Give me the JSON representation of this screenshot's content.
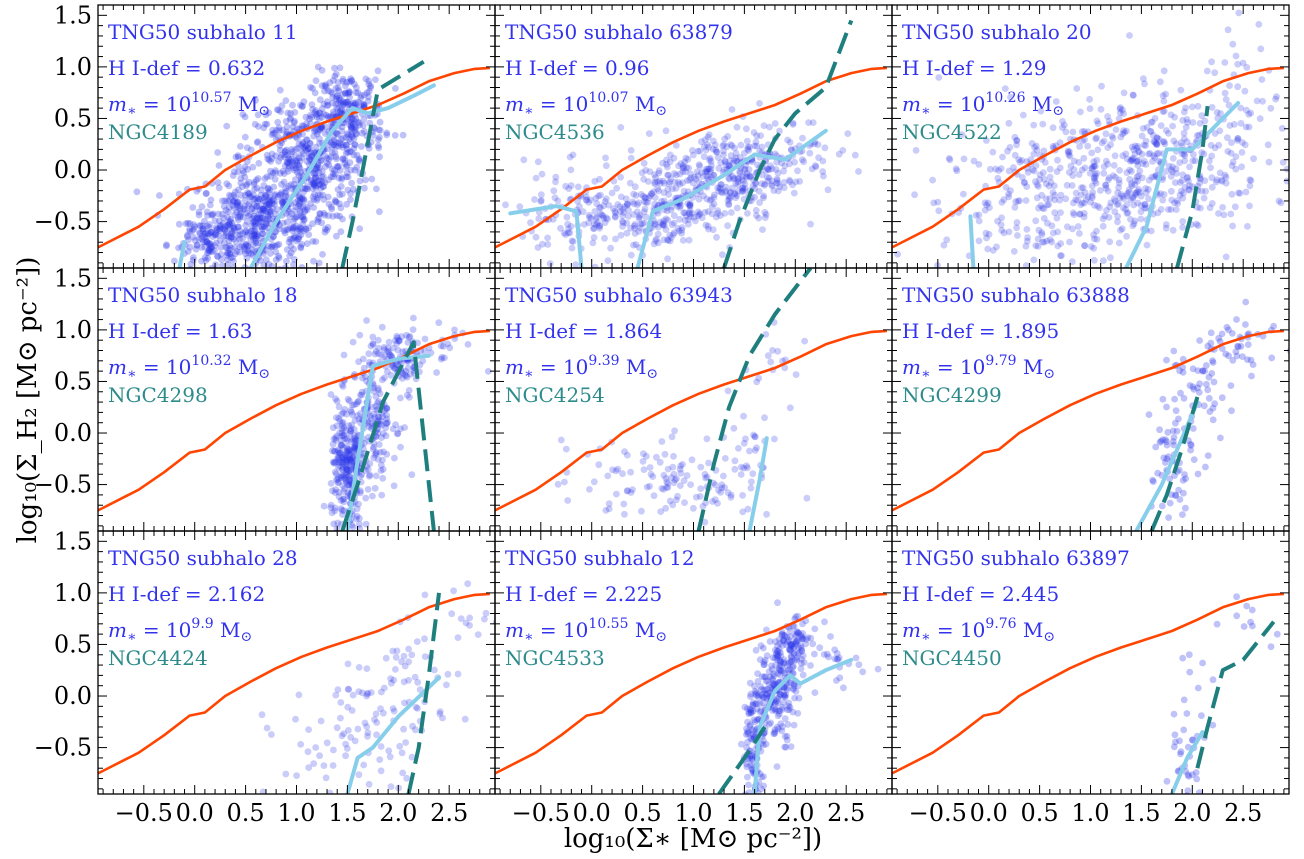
{
  "figure": {
    "xlabel": "log₁₀(Σ∗ [M⊙ pc⁻²])",
    "ylabel": "log₁₀(Σ_H₂ [M⊙ pc⁻²])",
    "colors": {
      "points": "#2b35e8",
      "reference_line": "#ff4500",
      "observed_line": "#1f7f7f",
      "simulated_line": "#87ceeb",
      "annotation_tng": "#3333ee",
      "annotation_ngc": "#2e8b8b"
    }
  },
  "chart_data": {
    "type": "scatter",
    "layout": "3x3 grid, shared axes",
    "xlabel": "log₁₀(Σ∗ [M⊙ pc⁻²])",
    "ylabel": "log₁₀(Σ_H₂ [M⊙ pc⁻²])",
    "xlim": [
      -0.95,
      2.95
    ],
    "ylim": [
      -0.95,
      1.6
    ],
    "xticks": [
      -0.5,
      0.0,
      0.5,
      1.0,
      1.5,
      2.0,
      2.5
    ],
    "xtick_labels": [
      "−0.5",
      "0.0",
      "0.5",
      "1.0",
      "1.5",
      "2.0",
      "2.5"
    ],
    "yticks": [
      -0.5,
      0.0,
      0.5,
      1.0,
      1.5
    ],
    "ytick_labels": [
      "−0.5",
      "0.0",
      "0.5",
      "1.0",
      "1.5"
    ],
    "reference_curve": {
      "x": [
        -0.95,
        -0.55,
        -0.3,
        -0.05,
        0.1,
        0.3,
        0.55,
        0.8,
        1.05,
        1.3,
        1.55,
        1.8,
        2.05,
        2.3,
        2.55,
        2.75,
        2.9
      ],
      "y": [
        -0.75,
        -0.55,
        -0.38,
        -0.19,
        -0.16,
        0.0,
        0.14,
        0.27,
        0.38,
        0.47,
        0.55,
        0.63,
        0.74,
        0.86,
        0.94,
        0.98,
        0.99
      ]
    },
    "panels": [
      {
        "title": "TNG50 subhalo 11",
        "hidef": "H I-def = 0.632",
        "mstar_exp": "10.57",
        "ngc": "NGC4189",
        "scatter": {
          "cx": [
            0.65,
            1.1,
            1.5,
            0.2
          ],
          "cy": [
            -0.5,
            0.1,
            0.55,
            -0.7
          ],
          "sx": [
            0.35,
            0.3,
            0.18,
            0.2
          ],
          "sy": [
            0.25,
            0.3,
            0.2,
            0.15
          ],
          "n": [
            480,
            420,
            220,
            120
          ],
          "alpha": 0.3
        },
        "observed_line": {
          "x": [
            1.45,
            1.55,
            1.65,
            1.8,
            2.25
          ],
          "y": [
            -0.95,
            -0.5,
            0.0,
            0.78,
            1.05
          ]
        },
        "simulated_line": {
          "x": [
            -0.15,
            -0.1
          ],
          "y": [
            -0.95,
            -0.7
          ],
          "x2": [
            0.55,
            0.8,
            1.1,
            1.35,
            1.55,
            1.7,
            1.9,
            2.15,
            2.35
          ],
          "y2": [
            -0.95,
            -0.5,
            -0.05,
            0.38,
            0.6,
            0.55,
            0.6,
            0.72,
            0.82
          ]
        }
      },
      {
        "title": "TNG50 subhalo 63879",
        "hidef": "H I-def = 0.96",
        "mstar_exp": "10.07",
        "ngc": "NGC4536",
        "scatter": {
          "cx": [
            0.0,
            0.7,
            1.3,
            1.8
          ],
          "cy": [
            -0.45,
            -0.35,
            -0.05,
            0.15
          ],
          "sx": [
            0.45,
            0.35,
            0.3,
            0.3
          ],
          "sy": [
            0.22,
            0.22,
            0.22,
            0.2
          ],
          "n": [
            160,
            220,
            220,
            120
          ],
          "alpha": 0.25
        },
        "observed_line": {
          "x": [
            1.3,
            1.45,
            1.65,
            1.8,
            2.0,
            2.3,
            2.55
          ],
          "y": [
            -0.95,
            -0.5,
            0.0,
            0.3,
            0.55,
            0.8,
            1.45
          ]
        },
        "simulated_line": {
          "x": [
            -0.8,
            -0.35,
            -0.15,
            -0.1
          ],
          "y": [
            -0.42,
            -0.35,
            -0.4,
            -0.95
          ],
          "x2": [
            0.45,
            0.6,
            0.9,
            1.3,
            1.6,
            1.9,
            2.3
          ],
          "y2": [
            -0.95,
            -0.4,
            -0.28,
            -0.05,
            0.15,
            0.1,
            0.38
          ]
        }
      },
      {
        "title": "TNG50 subhalo 20",
        "hidef": "H I-def = 1.29",
        "mstar_exp": "10.26",
        "ngc": "NGC4522",
        "scatter": {
          "cx": [
            0.5,
            1.2,
            1.9,
            2.5
          ],
          "cy": [
            -0.35,
            0.05,
            0.1,
            0.8
          ],
          "sx": [
            0.5,
            0.5,
            0.4,
            0.2
          ],
          "sy": [
            0.35,
            0.35,
            0.35,
            0.35
          ],
          "n": [
            220,
            260,
            200,
            40
          ],
          "alpha": 0.25
        },
        "observed_line": {
          "x": [
            1.85,
            2.0,
            2.1,
            2.15
          ],
          "y": [
            -0.95,
            -0.4,
            0.2,
            0.62
          ]
        },
        "simulated_line": {
          "x": [
            -0.18,
            -0.15
          ],
          "y": [
            -0.45,
            -0.95
          ],
          "x2": [
            1.35,
            1.55,
            1.75,
            2.0,
            2.25,
            2.45
          ],
          "y2": [
            -0.95,
            -0.55,
            0.2,
            0.2,
            0.45,
            0.65
          ]
        }
      },
      {
        "title": "TNG50 subhalo 18",
        "hidef": "H I-def = 1.63",
        "mstar_exp": "10.32",
        "ngc": "NGC4298",
        "scatter": {
          "cx": [
            1.5,
            1.75,
            2.05,
            2.5
          ],
          "cy": [
            -0.4,
            0.2,
            0.7,
            0.9
          ],
          "sx": [
            0.08,
            0.12,
            0.12,
            0.15
          ],
          "sy": [
            0.35,
            0.35,
            0.15,
            0.1
          ],
          "n": [
            260,
            200,
            90,
            15
          ],
          "alpha": 0.28
        },
        "observed_line": {
          "x": [
            1.45,
            1.6,
            1.85,
            2.15,
            2.35
          ],
          "y": [
            -0.95,
            -0.5,
            0.3,
            0.88,
            -0.95
          ]
        },
        "simulated_line": {
          "x": [
            1.5,
            1.58,
            1.75,
            2.0,
            2.3
          ],
          "y": [
            -0.95,
            -0.4,
            0.65,
            0.72,
            0.75
          ]
        }
      },
      {
        "title": "TNG50 subhalo 63943",
        "hidef": "H I-def = 1.864",
        "mstar_exp": "9.39",
        "ngc": "NGC4254",
        "scatter": {
          "cx": [
            0.4,
            1.0,
            1.5,
            1.8
          ],
          "cy": [
            -0.45,
            -0.5,
            -0.3,
            0.7
          ],
          "sx": [
            0.4,
            0.3,
            0.15,
            0.15
          ],
          "sy": [
            0.2,
            0.2,
            0.35,
            0.25
          ],
          "n": [
            50,
            60,
            40,
            15
          ],
          "alpha": 0.25
        },
        "observed_line": {
          "x": [
            1.05,
            1.2,
            1.35,
            1.55,
            1.8,
            2.15
          ],
          "y": [
            -0.95,
            -0.3,
            0.25,
            0.75,
            1.15,
            1.6
          ]
        },
        "simulated_line": {
          "x": [
            1.55,
            1.65,
            1.72
          ],
          "y": [
            -0.95,
            -0.45,
            -0.05
          ]
        }
      },
      {
        "title": "TNG50 subhalo 63888",
        "hidef": "H I-def = 1.895",
        "mstar_exp": "9.79",
        "ngc": "NGC4299",
        "scatter": {
          "cx": [
            1.8,
            2.0,
            2.3,
            2.6
          ],
          "cy": [
            -0.3,
            0.3,
            0.7,
            0.9
          ],
          "sx": [
            0.1,
            0.12,
            0.15,
            0.15
          ],
          "sy": [
            0.4,
            0.3,
            0.2,
            0.15
          ],
          "n": [
            60,
            40,
            30,
            20
          ],
          "alpha": 0.3
        },
        "observed_line": {
          "x": [
            1.6,
            1.75,
            1.9,
            2.05
          ],
          "y": [
            -0.95,
            -0.6,
            -0.15,
            0.35
          ]
        },
        "simulated_line": {
          "x": [
            1.45,
            1.7,
            1.9,
            2.05
          ],
          "y": [
            -0.95,
            -0.5,
            -0.05,
            0.3
          ]
        }
      },
      {
        "title": "TNG50 subhalo 28",
        "hidef": "H I-def = 2.162",
        "mstar_exp": "9.9",
        "ngc": "NGC4424",
        "scatter": {
          "cx": [
            1.3,
            1.8,
            2.2,
            2.7
          ],
          "cy": [
            -0.6,
            -0.2,
            0.2,
            0.8
          ],
          "sx": [
            0.3,
            0.25,
            0.2,
            0.2
          ],
          "sy": [
            0.3,
            0.3,
            0.3,
            0.15
          ],
          "n": [
            40,
            50,
            40,
            15
          ],
          "alpha": 0.25
        },
        "observed_line": {
          "x": [
            2.1,
            2.2,
            2.3,
            2.4
          ],
          "y": [
            -0.95,
            -0.5,
            0.2,
            1.0
          ]
        },
        "simulated_line": {
          "x": [
            1.5,
            1.6,
            1.75,
            2.0,
            2.4
          ],
          "y": [
            -0.95,
            -0.6,
            -0.5,
            -0.2,
            0.18
          ]
        }
      },
      {
        "title": "TNG50 subhalo 12",
        "hidef": "H I-def = 2.225",
        "mstar_exp": "10.55",
        "ngc": "NGC4533",
        "scatter": {
          "cx": [
            1.6,
            1.8,
            1.95,
            2.4
          ],
          "cy": [
            -0.5,
            0.05,
            0.45,
            0.3
          ],
          "sx": [
            0.06,
            0.1,
            0.1,
            0.2
          ],
          "sy": [
            0.3,
            0.25,
            0.15,
            0.15
          ],
          "n": [
            120,
            180,
            110,
            25
          ],
          "alpha": 0.28
        },
        "observed_line": {
          "x": [
            1.25,
            1.5,
            1.7
          ],
          "y": [
            -0.95,
            -0.6,
            -0.3
          ]
        },
        "simulated_line": {
          "x": [
            1.6,
            1.65,
            1.8,
            1.95,
            2.05,
            2.3,
            2.55
          ],
          "y": [
            -0.95,
            -0.3,
            0.05,
            0.2,
            0.12,
            0.25,
            0.35
          ]
        }
      },
      {
        "title": "TNG50 subhalo 63897",
        "hidef": "H I-def = 2.445",
        "mstar_exp": "9.76",
        "ngc": "NGC4450",
        "scatter": {
          "cx": [
            1.9,
            2.0,
            2.5
          ],
          "cy": [
            -0.7,
            -0.2,
            0.75
          ],
          "sx": [
            0.08,
            0.1,
            0.2
          ],
          "sy": [
            0.2,
            0.3,
            0.15
          ],
          "n": [
            25,
            15,
            10
          ],
          "alpha": 0.3
        },
        "observed_line": {
          "x": [
            2.05,
            2.15,
            2.3,
            2.5,
            2.8
          ],
          "y": [
            -0.7,
            -0.3,
            0.25,
            0.35,
            0.72
          ]
        },
        "simulated_line": {
          "x": [
            1.8,
            1.95,
            2.1
          ],
          "y": [
            -0.95,
            -0.6,
            -0.35
          ]
        }
      }
    ]
  }
}
